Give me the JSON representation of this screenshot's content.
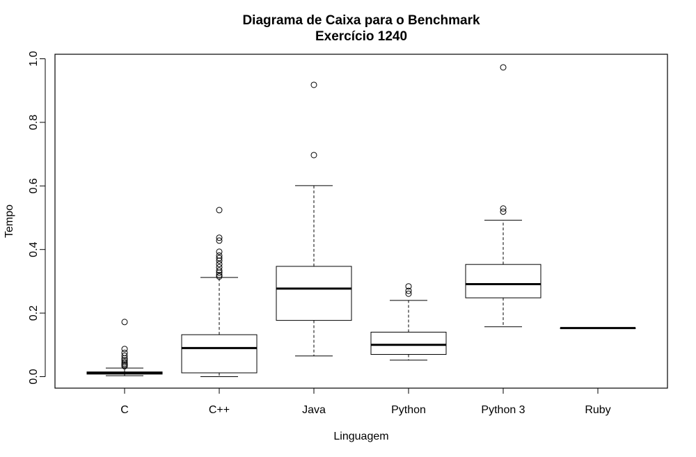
{
  "chart_data": {
    "type": "boxplot",
    "title": "Diagrama de Caixa para o Benchmark",
    "subtitle": "Exercício 1240",
    "xlabel": "Linguagem",
    "ylabel": "Tempo",
    "ylim": [
      -0.035,
      1.01
    ],
    "yticks": [
      "0.0",
      "0.2",
      "0.4",
      "0.6",
      "0.8",
      "1.0"
    ],
    "grid": false,
    "categories": [
      "C",
      "C++",
      "Java",
      "Python",
      "Python 3",
      "Ruby"
    ],
    "boxes": [
      {
        "category": "C",
        "min": 0.003,
        "q1": 0.008,
        "median": 0.012,
        "q3": 0.015,
        "max": 0.027,
        "outliers": [
          0.172,
          0.087,
          0.075,
          0.066,
          0.058,
          0.052,
          0.046,
          0.041,
          0.037,
          0.033
        ]
      },
      {
        "category": "C++",
        "min": 0.0,
        "q1": 0.012,
        "median": 0.09,
        "q3": 0.132,
        "max": 0.312,
        "outliers": [
          0.524,
          0.437,
          0.428,
          0.393,
          0.381,
          0.373,
          0.365,
          0.354,
          0.344,
          0.334,
          0.327,
          0.32,
          0.315
        ]
      },
      {
        "category": "Java",
        "min": 0.065,
        "q1": 0.177,
        "median": 0.277,
        "q3": 0.347,
        "max": 0.601,
        "outliers": [
          0.918,
          0.697
        ]
      },
      {
        "category": "Python",
        "min": 0.052,
        "q1": 0.07,
        "median": 0.1,
        "q3": 0.14,
        "max": 0.24,
        "outliers": [
          0.284,
          0.27,
          0.261
        ]
      },
      {
        "category": "Python 3",
        "min": 0.157,
        "q1": 0.248,
        "median": 0.291,
        "q3": 0.353,
        "max": 0.492,
        "outliers": [
          0.973,
          0.529,
          0.519
        ]
      },
      {
        "category": "Ruby",
        "min": 0.153,
        "q1": 0.153,
        "median": 0.153,
        "q3": 0.153,
        "max": 0.153,
        "outliers": []
      }
    ]
  }
}
